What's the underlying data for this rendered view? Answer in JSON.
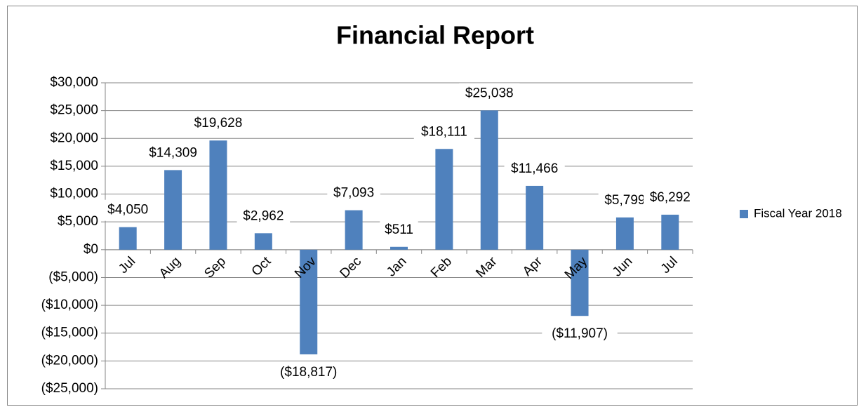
{
  "chart_data": {
    "type": "bar",
    "title": "Financial Report",
    "categories": [
      "Jul",
      "Aug",
      "Sep",
      "Oct",
      "Nov",
      "Dec",
      "Jan",
      "Feb",
      "Mar",
      "Apr",
      "May",
      "Jun",
      "Jul"
    ],
    "series": [
      {
        "name": "Fiscal Year 2018",
        "color": "#4f81bd",
        "values": [
          4050,
          14309,
          19628,
          2962,
          -18817,
          7093,
          511,
          18111,
          25038,
          11466,
          -11907,
          5799,
          6292
        ],
        "value_labels": [
          "$4,050",
          "$14,309",
          "$19,628",
          "$2,962",
          "($18,817)",
          "$7,093",
          "$511",
          "$18,111",
          "$25,038",
          "$11,466",
          "($11,907)",
          "$5,799",
          "$6,292"
        ]
      }
    ],
    "ylim": [
      -25000,
      30000
    ],
    "yticks": [
      {
        "value": -25000,
        "label": "($25,000)"
      },
      {
        "value": -20000,
        "label": "($20,000)"
      },
      {
        "value": -15000,
        "label": "($15,000)"
      },
      {
        "value": -10000,
        "label": "($10,000)"
      },
      {
        "value": -5000,
        "label": "($5,000)"
      },
      {
        "value": 0,
        "label": "$0"
      },
      {
        "value": 5000,
        "label": "$5,000"
      },
      {
        "value": 10000,
        "label": "$10,000"
      },
      {
        "value": 15000,
        "label": "$15,000"
      },
      {
        "value": 20000,
        "label": "$20,000"
      },
      {
        "value": 25000,
        "label": "$25,000"
      },
      {
        "value": 30000,
        "label": "$30,000"
      }
    ],
    "grid": true,
    "legend": "right",
    "negative_color": "#ff0000"
  }
}
